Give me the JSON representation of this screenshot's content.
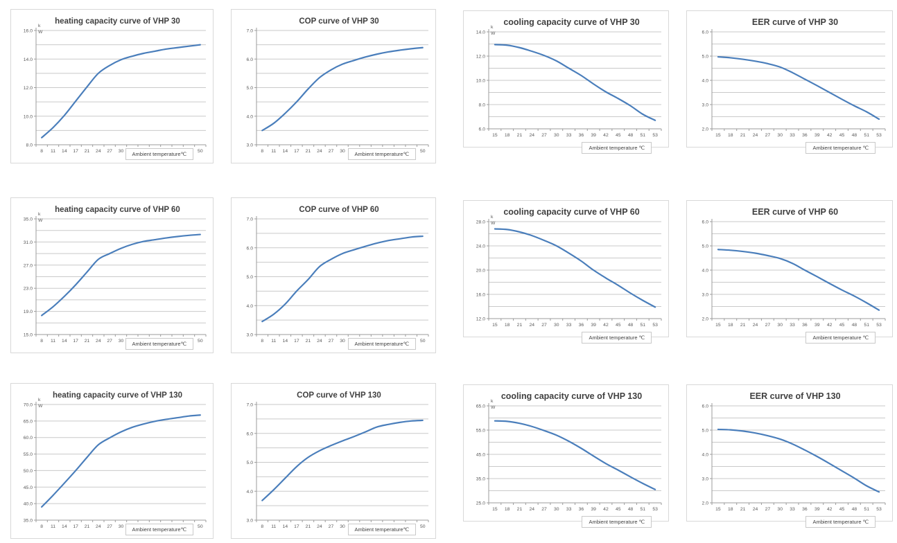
{
  "styles": {
    "curve_color": "#4a7ebb",
    "grid_color": "#c9c9c9",
    "axis_color": "#9b9b9b",
    "title_color": "#3f3f3f",
    "tick_color": "#595959",
    "border_color": "#d8d8d8"
  },
  "chart_data": [
    {
      "type": "line",
      "id": "heating-vhp30",
      "title": "heating capacity curve of VHP 30",
      "xlabel": "Ambient temperature℃",
      "ylabel": "kW",
      "x": [
        8,
        11,
        14,
        17,
        21,
        24,
        27,
        30,
        33,
        36,
        39,
        42,
        45,
        48,
        50
      ],
      "y": [
        8.5,
        9.2,
        10.05,
        11.05,
        12.05,
        13.0,
        13.55,
        13.95,
        14.2,
        14.4,
        14.55,
        14.7,
        14.8,
        14.9,
        15.0
      ],
      "ylim": [
        8,
        16
      ],
      "ylabels": [
        8,
        10,
        12,
        14,
        16
      ],
      "ygrid_step": 1,
      "grid": true,
      "legend": "none"
    },
    {
      "type": "line",
      "id": "cop-vhp30",
      "title": "COP curve of VHP 30",
      "xlabel": "Ambient temperature℃",
      "ylabel": "",
      "x": [
        8,
        11,
        14,
        17,
        21,
        24,
        27,
        30,
        33,
        36,
        39,
        42,
        45,
        48,
        50
      ],
      "y": [
        3.5,
        3.75,
        4.1,
        4.5,
        4.95,
        5.35,
        5.62,
        5.82,
        5.95,
        6.07,
        6.17,
        6.25,
        6.31,
        6.36,
        6.4
      ],
      "ylim": [
        3,
        7
      ],
      "ylabels": [
        3,
        4,
        5,
        6,
        7
      ],
      "ygrid_step": 0.5,
      "grid": true,
      "legend": "none"
    },
    {
      "type": "line",
      "id": "cooling-vhp30",
      "title": "cooling capacity curve of VHP 30",
      "xlabel": "Ambient temperature ℃",
      "ylabel": "kW",
      "x": [
        15,
        18,
        21,
        24,
        27,
        30,
        33,
        36,
        39,
        42,
        45,
        48,
        51,
        53
      ],
      "y": [
        12.95,
        12.9,
        12.7,
        12.4,
        12.05,
        11.6,
        11.0,
        10.4,
        9.7,
        9.05,
        8.5,
        7.9,
        7.2,
        6.7
      ],
      "ylim": [
        6,
        14
      ],
      "ylabels": [
        6,
        8,
        10,
        12,
        14
      ],
      "ygrid_step": 1,
      "grid": true,
      "legend": "none"
    },
    {
      "type": "line",
      "id": "eer-vhp30",
      "title": "EER curve of VHP 30",
      "xlabel": "Ambient temperature ℃",
      "ylabel": "",
      "x": [
        15,
        18,
        21,
        24,
        27,
        30,
        33,
        36,
        39,
        42,
        45,
        48,
        51,
        53
      ],
      "y": [
        4.97,
        4.93,
        4.87,
        4.79,
        4.69,
        4.55,
        4.32,
        4.05,
        3.78,
        3.5,
        3.22,
        2.95,
        2.7,
        2.4
      ],
      "ylim": [
        2,
        6
      ],
      "ylabels": [
        2,
        3,
        4,
        5,
        6
      ],
      "ygrid_step": 0.5,
      "grid": true,
      "legend": "none"
    },
    {
      "type": "line",
      "id": "heating-vhp60",
      "title": "heating capacity curve of VHP 60",
      "xlabel": "Ambient temperature℃",
      "ylabel": "kW",
      "x": [
        8,
        11,
        14,
        17,
        21,
        24,
        27,
        30,
        33,
        36,
        39,
        42,
        45,
        48,
        50
      ],
      "y": [
        18.3,
        19.8,
        21.6,
        23.6,
        25.8,
        28.0,
        29.0,
        29.9,
        30.6,
        31.1,
        31.4,
        31.7,
        31.95,
        32.15,
        32.3
      ],
      "ylim": [
        15,
        35
      ],
      "ylabels": [
        15,
        19,
        23,
        27,
        31,
        35
      ],
      "ygrid_step": 2,
      "grid": true,
      "legend": "none"
    },
    {
      "type": "line",
      "id": "cop-vhp60",
      "title": "COP curve of VHP 60",
      "xlabel": "Ambient temperature℃",
      "ylabel": "",
      "x": [
        8,
        11,
        14,
        17,
        21,
        24,
        27,
        30,
        33,
        36,
        39,
        42,
        45,
        48,
        50
      ],
      "y": [
        3.45,
        3.7,
        4.05,
        4.5,
        4.9,
        5.35,
        5.6,
        5.8,
        5.93,
        6.05,
        6.16,
        6.25,
        6.31,
        6.37,
        6.4
      ],
      "ylim": [
        3,
        7
      ],
      "ylabels": [
        3,
        4,
        5,
        6,
        7
      ],
      "ygrid_step": 0.5,
      "grid": true,
      "legend": "none"
    },
    {
      "type": "line",
      "id": "cooling-vhp60",
      "title": "cooling capacity curve of VHP 60",
      "xlabel": "Ambient temperature ℃",
      "ylabel": "kW",
      "x": [
        15,
        18,
        21,
        24,
        27,
        30,
        33,
        36,
        39,
        42,
        45,
        48,
        51,
        53
      ],
      "y": [
        26.8,
        26.7,
        26.3,
        25.7,
        24.9,
        24.0,
        22.8,
        21.5,
        20.0,
        18.7,
        17.5,
        16.2,
        15.0,
        13.9
      ],
      "ylim": [
        12,
        28
      ],
      "ylabels": [
        12,
        16,
        20,
        24,
        28
      ],
      "ygrid_step": 2,
      "grid": true,
      "legend": "none"
    },
    {
      "type": "line",
      "id": "eer-vhp60",
      "title": "EER curve of VHP 60",
      "xlabel": "Ambient temperature ℃",
      "ylabel": "",
      "x": [
        15,
        18,
        21,
        24,
        27,
        30,
        33,
        36,
        39,
        42,
        45,
        48,
        51,
        53
      ],
      "y": [
        4.85,
        4.82,
        4.77,
        4.7,
        4.6,
        4.48,
        4.28,
        4.0,
        3.73,
        3.45,
        3.18,
        2.93,
        2.65,
        2.35
      ],
      "ylim": [
        2,
        6
      ],
      "ylabels": [
        2,
        3,
        4,
        5,
        6
      ],
      "ygrid_step": 0.5,
      "grid": true,
      "legend": "none"
    },
    {
      "type": "line",
      "id": "heating-vhp130",
      "title": "heating capacity curve of VHP 130",
      "xlabel": "Ambient temperature℃",
      "ylabel": "kW",
      "x": [
        8,
        11,
        14,
        17,
        21,
        24,
        27,
        30,
        33,
        36,
        39,
        42,
        45,
        48,
        50
      ],
      "y": [
        39.0,
        42.5,
        46.2,
        50.0,
        54.0,
        57.8,
        59.9,
        61.7,
        63.1,
        64.1,
        64.9,
        65.5,
        66.0,
        66.5,
        66.8
      ],
      "ylim": [
        35,
        70
      ],
      "ylabels": [
        35,
        40,
        45,
        50,
        55,
        60,
        65,
        70
      ],
      "ygrid_step": 5,
      "grid": true,
      "legend": "none"
    },
    {
      "type": "line",
      "id": "cop-vhp130",
      "title": "COP curve of VHP 130",
      "xlabel": "Ambient temperature℃",
      "ylabel": "",
      "x": [
        8,
        11,
        14,
        17,
        21,
        24,
        27,
        30,
        33,
        36,
        39,
        42,
        45,
        48,
        50
      ],
      "y": [
        3.68,
        4.05,
        4.45,
        4.85,
        5.17,
        5.4,
        5.58,
        5.74,
        5.89,
        6.05,
        6.22,
        6.31,
        6.38,
        6.43,
        6.45
      ],
      "ylim": [
        3,
        7
      ],
      "ylabels": [
        3,
        4,
        5,
        6,
        7
      ],
      "ygrid_step": 0.5,
      "grid": true,
      "legend": "none"
    },
    {
      "type": "line",
      "id": "cooling-vhp130",
      "title": "cooling capacity curve of VHP 130",
      "xlabel": "Ambient temperature ℃",
      "ylabel": "kW",
      "x": [
        15,
        18,
        21,
        24,
        27,
        30,
        33,
        36,
        39,
        42,
        45,
        48,
        51,
        53
      ],
      "y": [
        58.8,
        58.6,
        57.8,
        56.5,
        54.8,
        52.9,
        50.4,
        47.5,
        44.3,
        41.2,
        38.5,
        35.7,
        33.0,
        30.5
      ],
      "ylim": [
        25,
        65
      ],
      "ylabels": [
        25,
        35,
        45,
        55,
        65
      ],
      "ygrid_step": 5,
      "grid": true,
      "legend": "none"
    },
    {
      "type": "line",
      "id": "eer-vhp130",
      "title": "EER curve of VHP 130",
      "xlabel": "Ambient temperature ℃",
      "ylabel": "",
      "x": [
        15,
        18,
        21,
        24,
        27,
        30,
        33,
        36,
        39,
        42,
        45,
        48,
        51,
        53
      ],
      "y": [
        5.03,
        5.01,
        4.96,
        4.88,
        4.77,
        4.63,
        4.43,
        4.18,
        3.91,
        3.62,
        3.32,
        3.02,
        2.7,
        2.45
      ],
      "ylim": [
        2,
        6
      ],
      "ylabels": [
        2,
        3,
        4,
        5,
        6
      ],
      "ygrid_step": 0.5,
      "grid": true,
      "legend": "none"
    }
  ]
}
